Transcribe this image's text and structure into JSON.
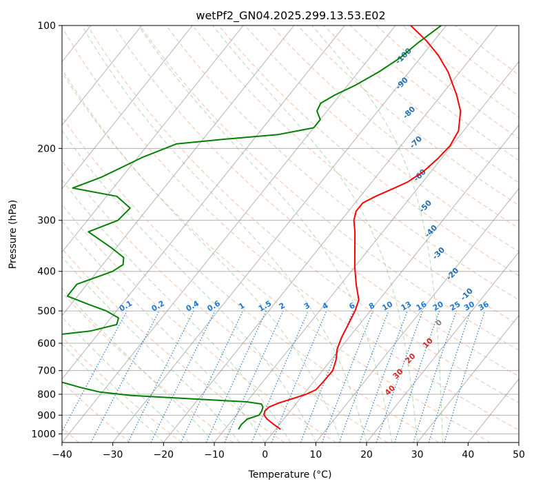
{
  "chart_data": {
    "type": "line",
    "chart_kind": "skew-T log-P",
    "title": "wetPf2_GN04.2025.299.13.53.E02",
    "xlabel": "Temperature (°C)",
    "ylabel": "Pressure (hPa)",
    "xlim": [
      -40,
      50
    ],
    "ylim": [
      1050,
      100
    ],
    "y_scale": "log",
    "grid": true,
    "x_ticks": [
      -40,
      -30,
      -20,
      -10,
      0,
      10,
      20,
      30,
      40,
      50
    ],
    "y_ticks": [
      100,
      200,
      300,
      400,
      500,
      600,
      700,
      800,
      900,
      1000
    ],
    "colors": {
      "temperature": "#ff0000",
      "dewpoint": "#008000",
      "isotherm": "#808080",
      "dry_adiabat": "#f4a582",
      "moist_adiabat": "#7fbf7f",
      "mixing_ratio": "#1f77d4",
      "dry_adiabat_label": "#d62728",
      "moist_adiabat_label": "#1f6fb4"
    },
    "series": [
      {
        "key": "temperature",
        "points": [
          {
            "p": 975,
            "t": 1.0
          },
          {
            "p": 950,
            "t": -1.0
          },
          {
            "p": 920,
            "t": -3.3
          },
          {
            "p": 900,
            "t": -4.5
          },
          {
            "p": 880,
            "t": -5.0
          },
          {
            "p": 860,
            "t": -4.8
          },
          {
            "p": 840,
            "t": -3.5
          },
          {
            "p": 820,
            "t": -1.5
          },
          {
            "p": 800,
            "t": 0.5
          },
          {
            "p": 780,
            "t": 1.7
          },
          {
            "p": 750,
            "t": 1.9
          },
          {
            "p": 700,
            "t": 2.0
          },
          {
            "p": 660,
            "t": 1.0
          },
          {
            "p": 620,
            "t": -0.5
          },
          {
            "p": 580,
            "t": -1.5
          },
          {
            "p": 540,
            "t": -2.2
          },
          {
            "p": 500,
            "t": -3.0
          },
          {
            "p": 470,
            "t": -4.0
          },
          {
            "p": 430,
            "t": -7.0
          },
          {
            "p": 390,
            "t": -10.0
          },
          {
            "p": 350,
            "t": -13.0
          },
          {
            "p": 320,
            "t": -15.5
          },
          {
            "p": 300,
            "t": -17.5
          },
          {
            "p": 285,
            "t": -18.5
          },
          {
            "p": 272,
            "t": -18.5
          },
          {
            "p": 262,
            "t": -17.0
          },
          {
            "p": 252,
            "t": -15.0
          },
          {
            "p": 242,
            "t": -13.0
          },
          {
            "p": 228,
            "t": -11.5
          },
          {
            "p": 212,
            "t": -10.7
          },
          {
            "p": 197,
            "t": -10.3
          },
          {
            "p": 181,
            "t": -11.0
          },
          {
            "p": 162,
            "t": -13.7
          },
          {
            "p": 148,
            "t": -17.0
          },
          {
            "p": 130,
            "t": -22.3
          },
          {
            "p": 118,
            "t": -27.0
          },
          {
            "p": 109,
            "t": -31.5
          },
          {
            "p": 100,
            "t": -37.0
          }
        ]
      },
      {
        "key": "dewpoint",
        "points": [
          {
            "p": 975,
            "t": -7.3
          },
          {
            "p": 950,
            "t": -7.5
          },
          {
            "p": 920,
            "t": -7.2
          },
          {
            "p": 900,
            "t": -5.5
          },
          {
            "p": 880,
            "t": -5.6
          },
          {
            "p": 860,
            "t": -6.0
          },
          {
            "p": 845,
            "t": -6.8
          },
          {
            "p": 835,
            "t": -10.0
          },
          {
            "p": 820,
            "t": -22.0
          },
          {
            "p": 805,
            "t": -34.0
          },
          {
            "p": 790,
            "t": -40.5
          },
          {
            "p": 770,
            "t": -45.0
          },
          {
            "p": 740,
            "t": -51.0
          },
          {
            "p": 715,
            "t": -60.0
          },
          {
            "p": 620,
            "t": -90.0
          },
          {
            "p": 600,
            "t": -78.5
          },
          {
            "p": 580,
            "t": -62.0
          },
          {
            "p": 560,
            "t": -52.0
          },
          {
            "p": 540,
            "t": -47.8
          },
          {
            "p": 520,
            "t": -48.5
          },
          {
            "p": 500,
            "t": -52.0
          },
          {
            "p": 480,
            "t": -57.0
          },
          {
            "p": 460,
            "t": -62.0
          },
          {
            "p": 430,
            "t": -62.0
          },
          {
            "p": 400,
            "t": -57.0
          },
          {
            "p": 385,
            "t": -56.0
          },
          {
            "p": 370,
            "t": -57.0
          },
          {
            "p": 350,
            "t": -61.0
          },
          {
            "p": 320,
            "t": -68.0
          },
          {
            "p": 300,
            "t": -64.0
          },
          {
            "p": 280,
            "t": -63.5
          },
          {
            "p": 262,
            "t": -68.0
          },
          {
            "p": 250,
            "t": -78.0
          },
          {
            "p": 235,
            "t": -74.0
          },
          {
            "p": 210,
            "t": -69.0
          },
          {
            "p": 195,
            "t": -64.5
          },
          {
            "p": 190,
            "t": -56.0
          },
          {
            "p": 185,
            "t": -46.0
          },
          {
            "p": 178,
            "t": -40.0
          },
          {
            "p": 170,
            "t": -40.0
          },
          {
            "p": 162,
            "t": -42.0
          },
          {
            "p": 155,
            "t": -42.5
          },
          {
            "p": 148,
            "t": -41.0
          },
          {
            "p": 140,
            "t": -38.5
          },
          {
            "p": 130,
            "t": -36.0
          },
          {
            "p": 120,
            "t": -34.0
          },
          {
            "p": 110,
            "t": -32.8
          },
          {
            "p": 100,
            "t": -31.0
          }
        ]
      }
    ],
    "isotherms": [
      -120,
      -110,
      -100,
      -90,
      -80,
      -70,
      -60,
      -50,
      -40,
      -30,
      -20,
      -10,
      0,
      10,
      20,
      30,
      40,
      50
    ],
    "dry_adiabats": [
      -70,
      -60,
      -50,
      -40,
      -30,
      -20,
      -10,
      0,
      10,
      20,
      30,
      40,
      50,
      60,
      70,
      80,
      90,
      100,
      110,
      120,
      130,
      140,
      150,
      160,
      170,
      180,
      190,
      200
    ],
    "dry_adiabat_labels": [
      "0",
      "10",
      "20",
      "30",
      "40"
    ],
    "moist_adiabats": [
      -20,
      -15,
      -10,
      -5,
      0,
      5,
      10,
      15,
      20,
      25,
      30,
      35
    ],
    "moist_adiabat_labels": [
      "-100",
      "-90",
      "-80",
      "-70",
      "-60",
      "-50",
      "-40",
      "-30",
      "-20",
      "-10"
    ],
    "mixing_ratio_values": [
      0.1,
      0.2,
      0.4,
      0.6,
      1,
      1.5,
      2,
      3,
      4,
      6,
      8,
      10,
      13,
      16,
      20,
      25,
      30,
      36
    ],
    "mixing_ratio_labels": [
      "0.1",
      "0.2",
      "0.4",
      "0.6",
      "1",
      "1.5",
      "2",
      "3",
      "4",
      "6",
      "8",
      "10",
      "13",
      "16",
      "20",
      "25",
      "30",
      "36"
    ]
  }
}
